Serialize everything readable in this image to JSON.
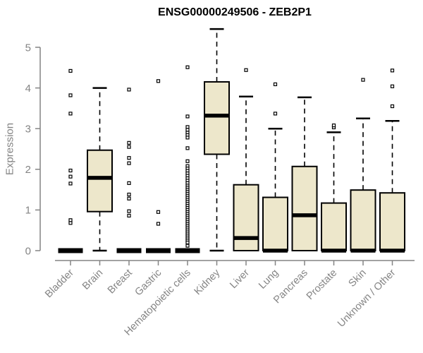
{
  "chart_data": {
    "type": "boxplot",
    "title": "ENSG00000249506 - ZEB2P1",
    "ylabel": "Expression",
    "yticks": [
      0,
      1,
      2,
      3,
      4,
      5
    ],
    "ylim": [
      0,
      5.6
    ],
    "grid": false,
    "legend": null,
    "categories": [
      "Bladder",
      "Brain",
      "Breast",
      "Gastric",
      "Hematopoietic cells",
      "Kidney",
      "Liver",
      "Lung",
      "Pancreas",
      "Prostate",
      "Skin",
      "Unknown / Other"
    ],
    "series": [
      {
        "category": "Bladder",
        "q1": 0,
        "median": 0,
        "q3": 0,
        "whisker_low": 0,
        "whisker_high": 0,
        "outliers": [
          0.68,
          0.75,
          1.65,
          1.82,
          1.97,
          3.37,
          3.82,
          4.42
        ]
      },
      {
        "category": "Brain",
        "q1": 0.96,
        "median": 1.79,
        "q3": 2.47,
        "whisker_low": 0,
        "whisker_high": 4.0,
        "outliers": []
      },
      {
        "category": "Breast",
        "q1": 0,
        "median": 0,
        "q3": 0,
        "whisker_low": 0,
        "whisker_high": 0,
        "outliers": [
          0.86,
          0.97,
          1.28,
          1.38,
          1.66,
          2.15,
          2.28,
          2.55,
          2.65,
          3.96
        ]
      },
      {
        "category": "Gastric",
        "q1": 0,
        "median": 0,
        "q3": 0,
        "whisker_low": 0,
        "whisker_high": 0,
        "outliers": [
          0.66,
          0.95,
          4.17
        ]
      },
      {
        "category": "Hematopoietic cells",
        "q1": 0,
        "median": 0,
        "q3": 0,
        "whisker_low": 0,
        "whisker_high": 0,
        "outliers": [
          4.51,
          3.3,
          3.04,
          2.97,
          2.9,
          2.84,
          2.78,
          2.52,
          2.2,
          2.08,
          2.02,
          1.96,
          1.9,
          1.84,
          1.78,
          1.72,
          1.66,
          1.6,
          1.55,
          1.5,
          1.45,
          1.4,
          1.35,
          1.3,
          1.25,
          1.2,
          1.15,
          1.1,
          1.05,
          1.0,
          0.95,
          0.9,
          0.85,
          0.8,
          0.75,
          0.7,
          0.65,
          0.6,
          0.55,
          0.5,
          0.45,
          0.4,
          0.35,
          0.3,
          0.25,
          0.2,
          0.12
        ]
      },
      {
        "category": "Kidney",
        "q1": 2.37,
        "median": 3.32,
        "q3": 4.15,
        "whisker_low": 0,
        "whisker_high": 5.45,
        "outliers": []
      },
      {
        "category": "Liver",
        "q1": 0,
        "median": 0.31,
        "q3": 1.62,
        "whisker_low": 0,
        "whisker_high": 3.79,
        "outliers": [
          4.44
        ]
      },
      {
        "category": "Lung",
        "q1": 0,
        "median": 0,
        "q3": 1.31,
        "whisker_low": 0,
        "whisker_high": 3.0,
        "outliers": [
          3.37,
          4.09
        ]
      },
      {
        "category": "Pancreas",
        "q1": 0,
        "median": 0.87,
        "q3": 2.07,
        "whisker_low": 0,
        "whisker_high": 3.77,
        "outliers": []
      },
      {
        "category": "Prostate",
        "q1": 0,
        "median": 0,
        "q3": 1.17,
        "whisker_low": 0,
        "whisker_high": 2.91,
        "outliers": [
          3.03,
          3.08
        ]
      },
      {
        "category": "Skin",
        "q1": 0,
        "median": 0,
        "q3": 1.49,
        "whisker_low": 0,
        "whisker_high": 3.25,
        "outliers": [
          4.2
        ]
      },
      {
        "category": "Unknown / Other",
        "q1": 0,
        "median": 0,
        "q3": 1.42,
        "whisker_low": 0,
        "whisker_high": 3.19,
        "outliers": [
          3.55,
          4.04,
          4.43
        ]
      }
    ],
    "colors": {
      "box_fill": "#EDE7CB",
      "box_border": "#000000",
      "median": "#000000",
      "whisker": "#000000",
      "axis": "#848484",
      "tick_label": "#848484",
      "title": "#000000",
      "outlier_fill": "#ffffff"
    }
  }
}
